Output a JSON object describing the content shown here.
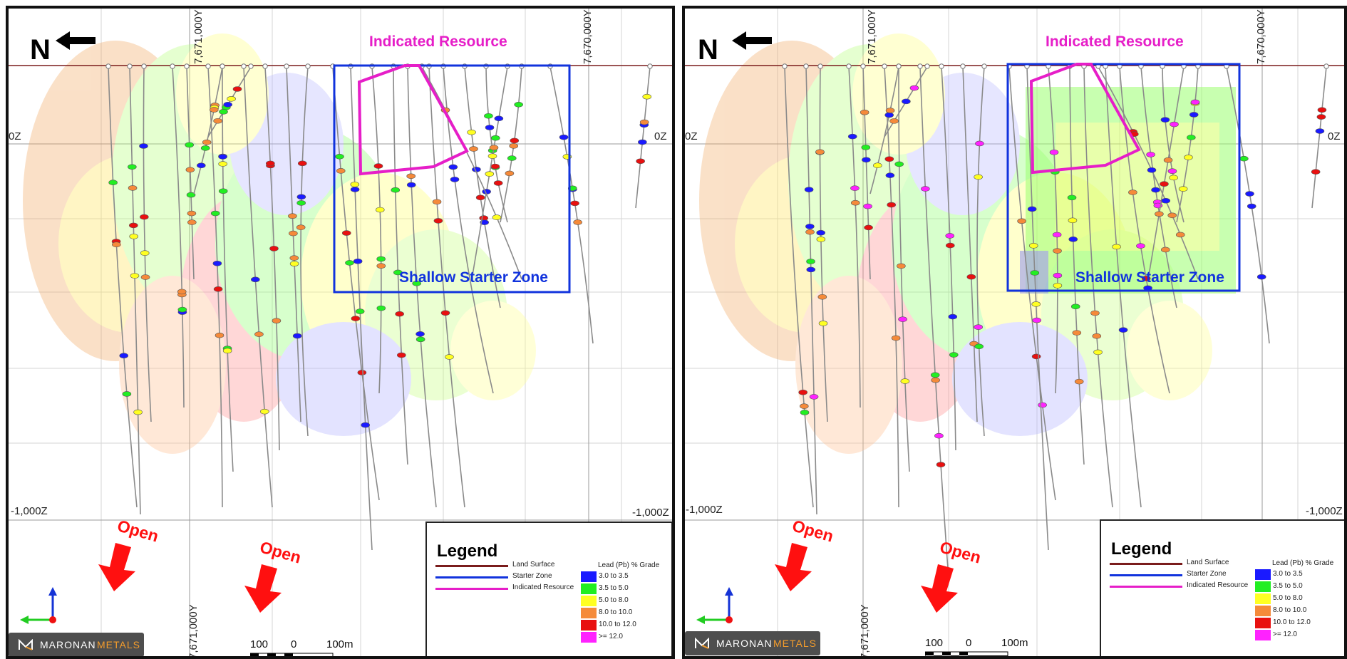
{
  "panels": [
    {
      "id": "left",
      "north_label": "N",
      "indicated_resource_label": "Indicated Resource",
      "starter_zone_label": "Shallow Starter Zone",
      "open_labels": [
        "Open",
        "Open"
      ],
      "grid_labels": {
        "top_easting_1": "7,671,000Y",
        "top_easting_2": "7,670,000Y",
        "bottom_easting": "7,671,000Y",
        "left_z0": "0Z",
        "right_z0": "0Z",
        "left_z1000": "-1,000Z",
        "right_z1000": "-1,000Z"
      }
    },
    {
      "id": "right",
      "north_label": "N",
      "indicated_resource_label": "Indicated Resource",
      "starter_zone_label": "Shallow Starter Zone",
      "open_labels": [
        "Open",
        "Open"
      ],
      "grid_labels": {
        "top_easting_1": "7,671,000Y",
        "top_easting_2": "7,670,000Y",
        "bottom_easting": "7,671,000Y",
        "left_z0": "0Z",
        "right_z0": "0Z",
        "left_z1000": "-1,000Z",
        "right_z1000": "-1,000Z"
      }
    }
  ],
  "legend": {
    "title": "Legend",
    "lines": [
      {
        "label": "Land Surface",
        "color": "#7a1c1c"
      },
      {
        "label": "Starter Zone",
        "color": "#1133dd"
      },
      {
        "label": "Indicated Resource",
        "color": "#e61ec8"
      }
    ],
    "grade_title": "Lead (Pb) % Grade",
    "grades": [
      {
        "label": "3.0 to 3.5",
        "color": "#1a1aff"
      },
      {
        "label": "3.5 to 5.0",
        "color": "#22ee22"
      },
      {
        "label": "5.0 to 8.0",
        "color": "#ffff22"
      },
      {
        "label": "8.0 to 10.0",
        "color": "#f58a3a"
      },
      {
        "label": "10.0 to 12.0",
        "color": "#e81010"
      },
      {
        "label": ">= 12.0",
        "color": "#ff22ff"
      }
    ]
  },
  "scale_bar": {
    "labels": [
      "100",
      "0",
      "100m"
    ]
  },
  "logo": {
    "word1": "MARONAN",
    "word2": "METALS"
  },
  "colors": {
    "indicated_resource": "#e61ec8",
    "starter_zone": "#1133dd",
    "open_arrow": "#ff1010",
    "land_surface": "#7a1c1c",
    "drillhole": "#8a8a8a"
  },
  "icons": [
    "north-arrow-icon",
    "axis-triad-icon",
    "open-arrow-icon",
    "maronan-logo-icon"
  ]
}
